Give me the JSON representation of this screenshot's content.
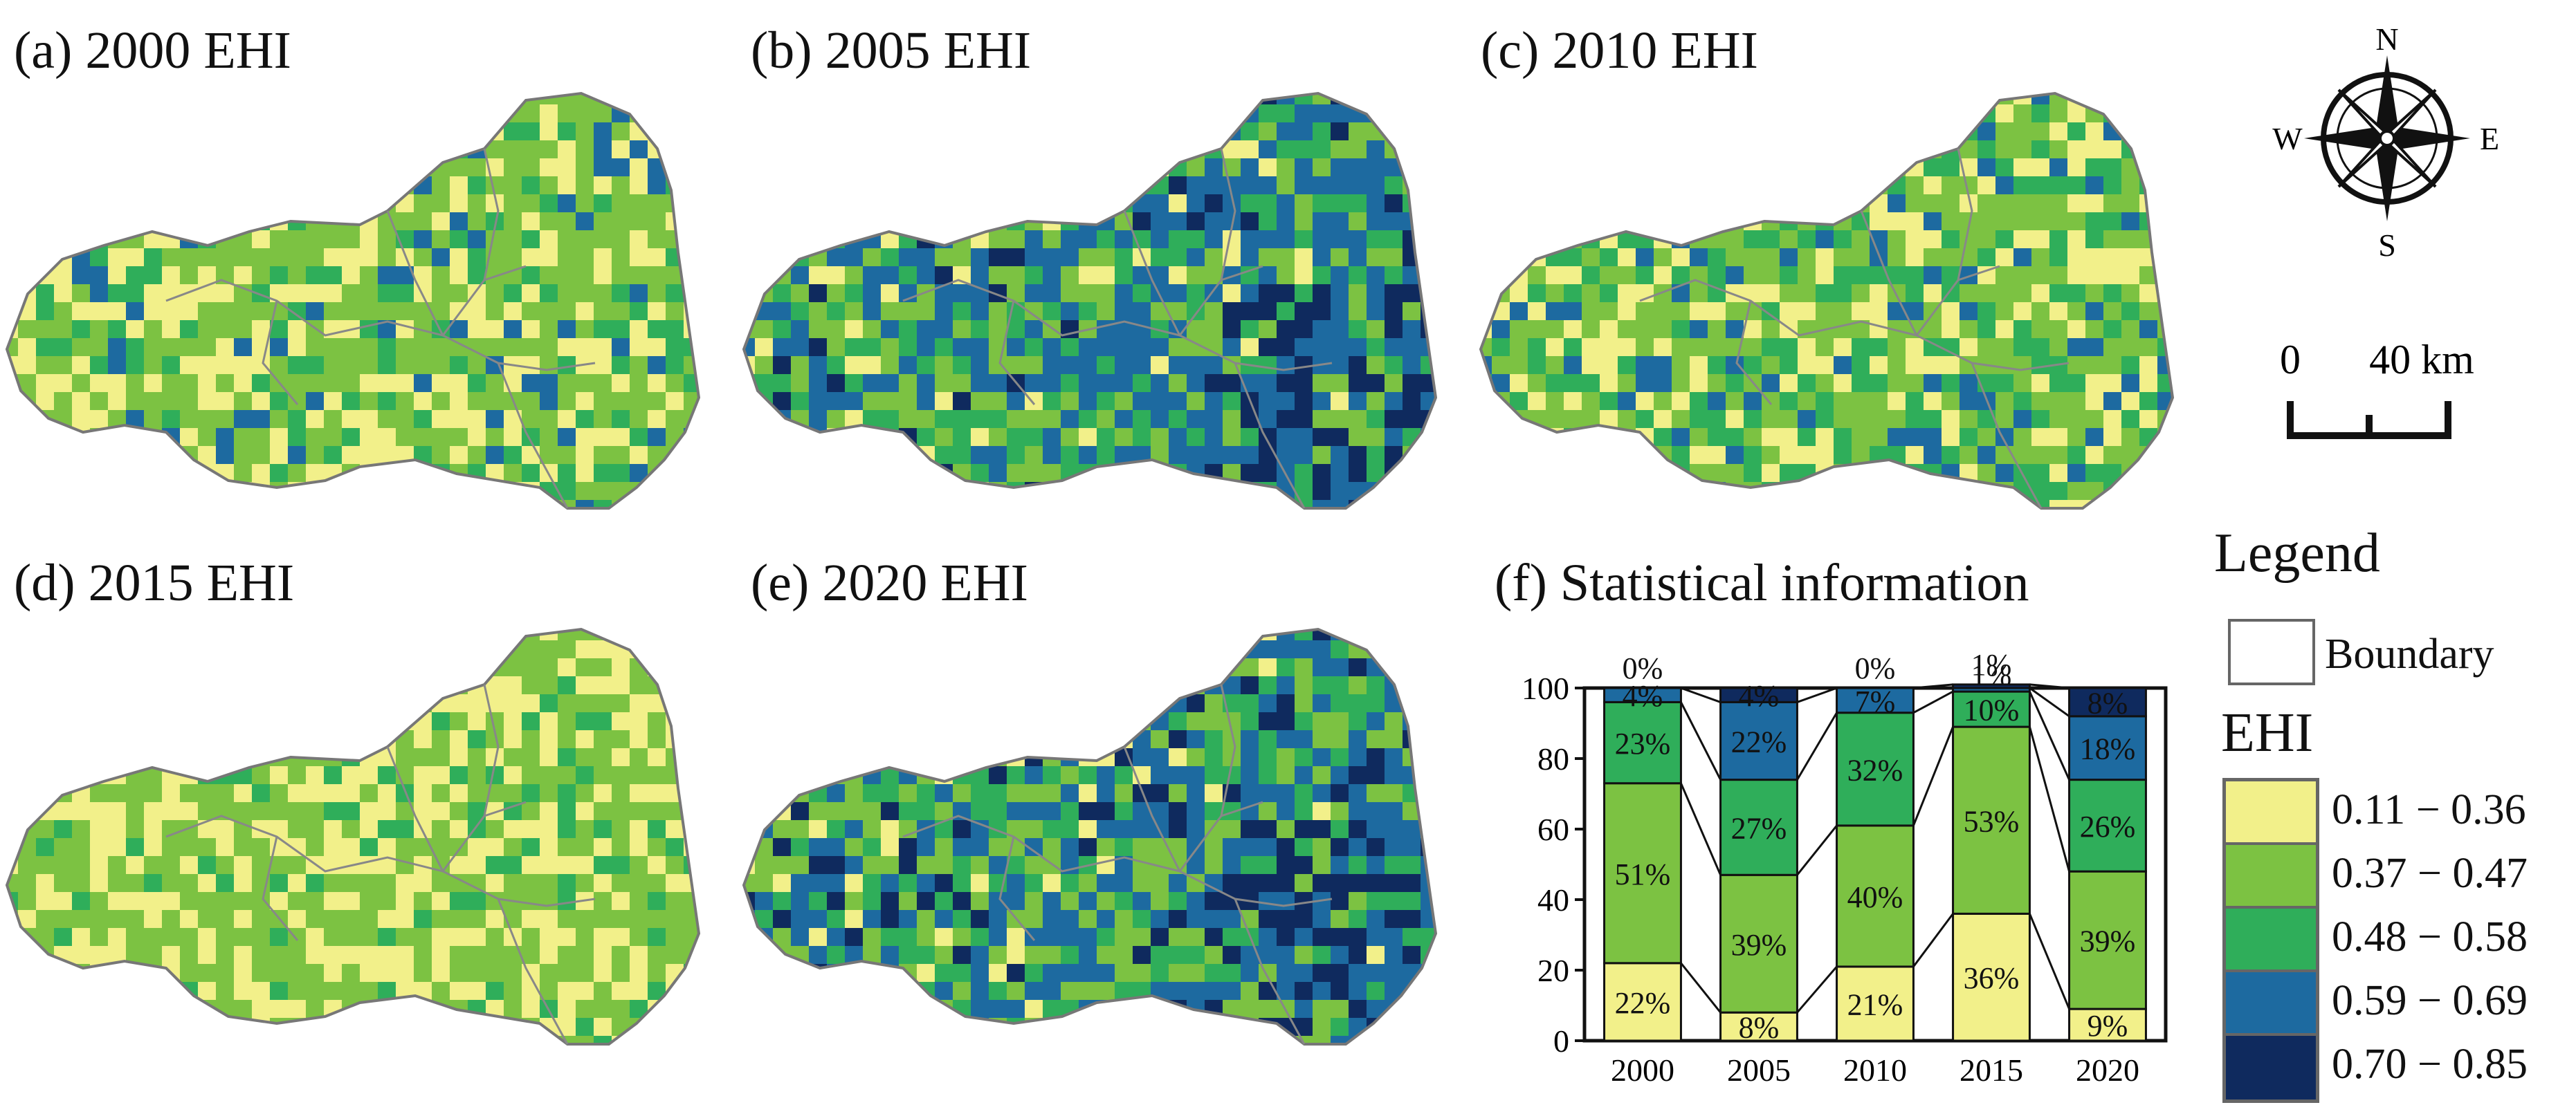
{
  "panels": [
    {
      "id": "a",
      "title": "(a) 2000 EHI"
    },
    {
      "id": "b",
      "title": "(b) 2005 EHI"
    },
    {
      "id": "c",
      "title": "(c) 2010 EHI"
    },
    {
      "id": "d",
      "title": "(d) 2015 EHI"
    },
    {
      "id": "e",
      "title": "(e) 2020 EHI"
    }
  ],
  "compass": {
    "n": "N",
    "s": "S",
    "e": "E",
    "w": "W"
  },
  "scale_bar": {
    "start": "0",
    "end": "40 km"
  },
  "legend": {
    "title": "Legend",
    "boundary_label": "Boundary",
    "ehi_title": "EHI",
    "classes": [
      {
        "label": "0.11 − 0.36",
        "color": "#f2f08a"
      },
      {
        "label": "0.37 − 0.47",
        "color": "#7cc242"
      },
      {
        "label": "0.48 − 0.58",
        "color": "#2fae5a"
      },
      {
        "label": "0.59 − 0.69",
        "color": "#1d6aa0"
      },
      {
        "label": "0.70 − 0.85",
        "color": "#0f2a5e"
      }
    ]
  },
  "chart_data": {
    "type": "bar",
    "title": "(f) Statistical information",
    "categories": [
      "2000",
      "2005",
      "2010",
      "2015",
      "2020"
    ],
    "ylim": [
      0,
      100
    ],
    "yticks": [
      "0",
      "20",
      "40",
      "60",
      "80",
      "100"
    ],
    "series": [
      {
        "name": "0.11 − 0.36",
        "color": "#f2f08a",
        "values": [
          22,
          8,
          21,
          36,
          9
        ],
        "labels": [
          "22%",
          "8%",
          "21%",
          "36%",
          "9%"
        ]
      },
      {
        "name": "0.37 − 0.47",
        "color": "#7cc242",
        "values": [
          51,
          39,
          40,
          53,
          39
        ],
        "labels": [
          "51%",
          "39%",
          "40%",
          "53%",
          "39%"
        ]
      },
      {
        "name": "0.48 − 0.58",
        "color": "#2fae5a",
        "values": [
          23,
          27,
          32,
          10,
          26
        ],
        "labels": [
          "23%",
          "27%",
          "32%",
          "10%",
          "26%"
        ]
      },
      {
        "name": "0.59 − 0.69",
        "color": "#1d6aa0",
        "values": [
          4,
          22,
          7,
          1,
          18
        ],
        "labels": [
          "4%",
          "22%",
          "7%",
          "1%",
          "18%"
        ]
      },
      {
        "name": "0.70 − 0.85",
        "color": "#0f2a5e",
        "values": [
          0,
          4,
          0,
          1,
          8
        ],
        "labels": [
          "0%",
          "4%",
          "0%",
          "1%",
          "8%"
        ]
      }
    ]
  }
}
